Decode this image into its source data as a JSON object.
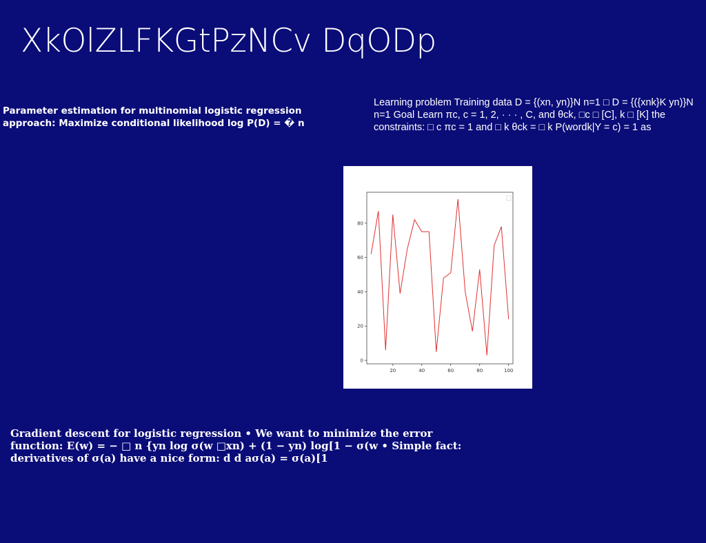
{
  "slide": {
    "title": "XkOlZLFKGtPzNCv DqODp",
    "left_text": "Parameter estimation for multinomial logistic regression approach: Maximize conditional likelihood log P(D) = � n",
    "right_text": "Learning problem Training data D = {(xn, yn)}N n=1 □ D = {({xnk}K yn)}N n=1 Goal Learn πc, c = 1, 2, · · · , C, and θck, □c □ [C], k □ [K] the constraints: □ c πc = 1 and □ k θck = □ k P(wordk|Y = c) = 1 as",
    "bottom_text": "Gradient descent for logistic regression • We want to minimize the error function: E(w) = − □ n {yn log σ(w □xn) + (1 − yn) log[1 − σ(w • Simple fact: derivatives of σ(a) have a nice form: d d aσ(a) = σ(a)[1"
  },
  "colors": {
    "background": "#0a0c78",
    "text": "#ffffff",
    "line": "#e03030"
  },
  "chart_data": {
    "type": "line",
    "x": [
      5,
      10,
      15,
      20,
      25,
      30,
      35,
      40,
      45,
      50,
      55,
      60,
      65,
      70,
      75,
      80,
      85,
      90,
      95,
      100
    ],
    "series": [
      {
        "values": [
          62,
          87,
          6,
          85,
          39,
          65,
          82,
          75,
          75,
          5,
          48,
          51,
          94,
          40,
          17,
          53,
          3,
          67,
          78,
          24
        ]
      }
    ],
    "xticks": [
      20,
      40,
      60,
      80,
      100
    ],
    "yticks": [
      0,
      20,
      40,
      60,
      80
    ],
    "xlim": [
      2,
      103
    ],
    "ylim": [
      -2,
      98
    ],
    "grid": false,
    "legend": "top-right"
  }
}
